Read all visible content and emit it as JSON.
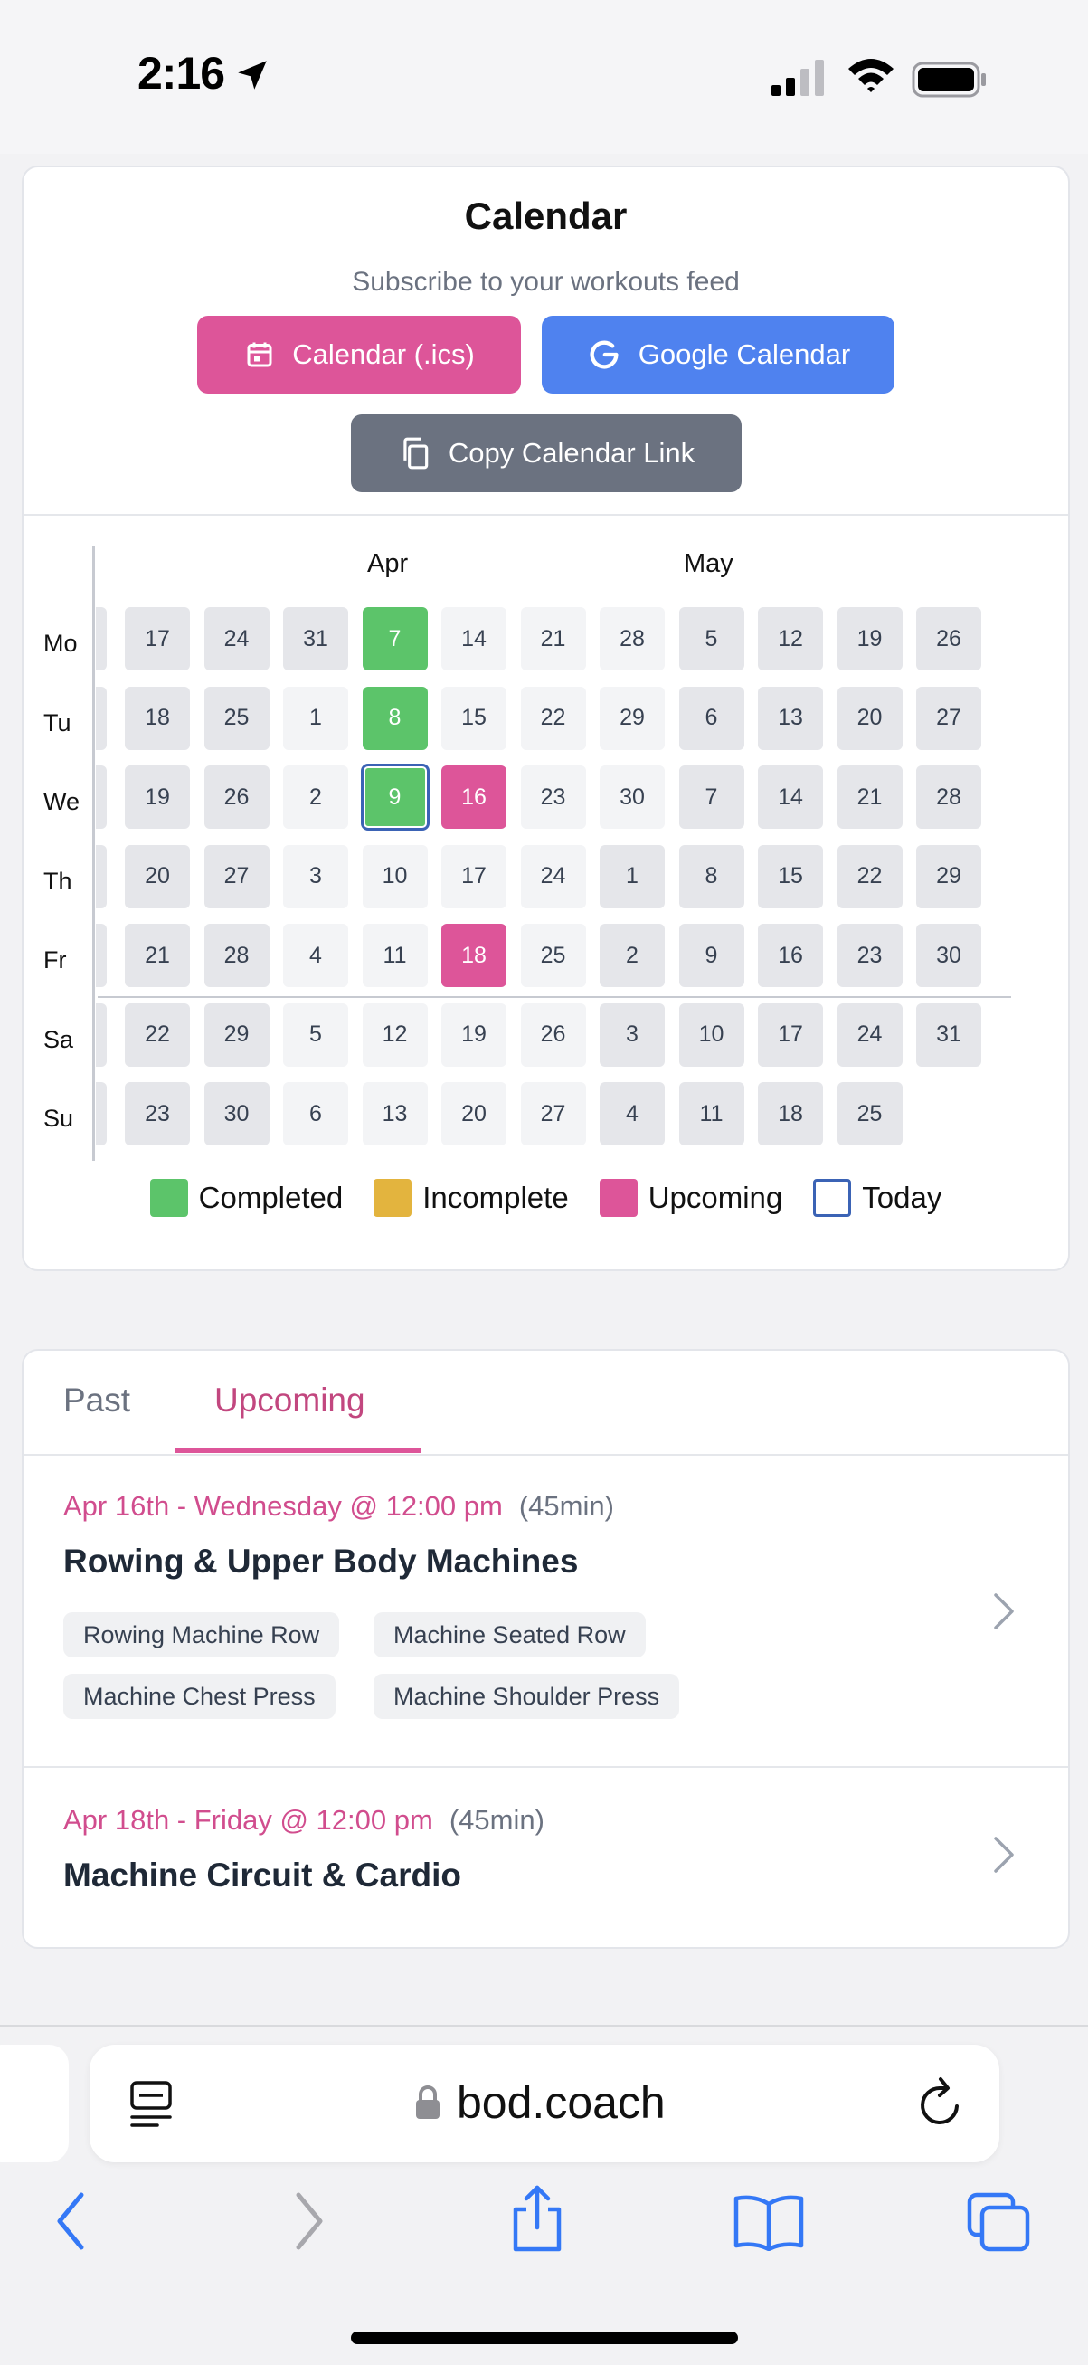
{
  "status_bar": {
    "time": "2:16"
  },
  "calendar": {
    "title": "Calendar",
    "subtitle": "Subscribe to your workouts feed",
    "buttons": {
      "ics": "Calendar (.ics)",
      "google": "Google Calendar",
      "copy": "Copy Calendar Link"
    },
    "months": [
      "Apr",
      "May"
    ],
    "weekdays": [
      "Mo",
      "Tu",
      "We",
      "Th",
      "Fr",
      "Sa",
      "Su"
    ],
    "weeks": [
      [
        "17",
        "18",
        "19",
        "20",
        "21",
        "22",
        "23"
      ],
      [
        "24",
        "25",
        "26",
        "27",
        "28",
        "29",
        "30"
      ],
      [
        "31",
        "1",
        "2",
        "3",
        "4",
        "5",
        "6"
      ],
      [
        "7",
        "8",
        "9",
        "10",
        "11",
        "12",
        "13"
      ],
      [
        "14",
        "15",
        "16",
        "17",
        "18",
        "19",
        "20"
      ],
      [
        "21",
        "22",
        "23",
        "24",
        "25",
        "26",
        "27"
      ],
      [
        "28",
        "29",
        "30",
        "1",
        "2",
        "3",
        "4"
      ],
      [
        "5",
        "6",
        "7",
        "8",
        "9",
        "10",
        "11"
      ],
      [
        "12",
        "13",
        "14",
        "15",
        "16",
        "17",
        "18"
      ],
      [
        "19",
        "20",
        "21",
        "22",
        "23",
        "24",
        "25"
      ],
      [
        "26",
        "27",
        "28",
        "29",
        "30",
        "31",
        ""
      ]
    ],
    "legend": [
      "Completed",
      "Incomplete",
      "Upcoming",
      "Today"
    ],
    "colors": {
      "completed": "#5cc46a",
      "incomplete": "#e3b43e",
      "upcoming": "#dd5599",
      "today_border": "#3b63b5"
    }
  },
  "workouts": {
    "tabs": [
      "Past",
      "Upcoming"
    ],
    "active_tab": "Upcoming",
    "items": [
      {
        "date": "Apr 16th - Wednesday @ 12:00 pm",
        "duration": "(45min)",
        "title": "Rowing & Upper Body Machines",
        "tags": [
          "Rowing Machine Row",
          "Machine Seated Row",
          "Machine Chest Press",
          "Machine Shoulder Press"
        ]
      },
      {
        "date": "Apr 18th - Friday @ 12:00 pm",
        "duration": "(45min)",
        "title": "Machine Circuit & Cardio",
        "tags": []
      }
    ]
  },
  "browser": {
    "url": "bod.coach"
  }
}
